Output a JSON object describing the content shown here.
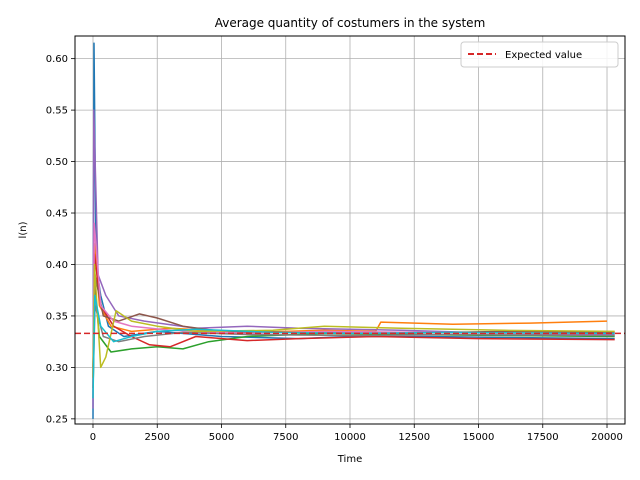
{
  "chart_data": {
    "type": "line",
    "title": "Average quantity of costumers in the system",
    "xlabel": "Time",
    "ylabel": "l(n)",
    "xlim": [
      -700,
      20700
    ],
    "ylim": [
      0.245,
      0.622
    ],
    "x_ticks": [
      0,
      2500,
      5000,
      7500,
      10000,
      12500,
      15000,
      17500,
      20000
    ],
    "y_ticks": [
      0.25,
      0.3,
      0.35,
      0.4,
      0.45,
      0.5,
      0.55,
      0.6
    ],
    "grid": true,
    "legend_position": "top-right",
    "reference_line": {
      "name": "Expected value",
      "y": 0.333,
      "style": "dashed",
      "color": "#d62728"
    },
    "series": [
      {
        "color": "#1f77b4",
        "points": [
          [
            0,
            0.25
          ],
          [
            40,
            0.615
          ],
          [
            120,
            0.4
          ],
          [
            300,
            0.37
          ],
          [
            600,
            0.34
          ],
          [
            1200,
            0.33
          ],
          [
            2500,
            0.335
          ],
          [
            5000,
            0.33
          ],
          [
            8000,
            0.328
          ],
          [
            10000,
            0.33
          ],
          [
            13000,
            0.33
          ],
          [
            16000,
            0.329
          ],
          [
            20300,
            0.328
          ]
        ]
      },
      {
        "color": "#ff7f0e",
        "points": [
          [
            0,
            0.28
          ],
          [
            60,
            0.42
          ],
          [
            250,
            0.36
          ],
          [
            700,
            0.34
          ],
          [
            1500,
            0.335
          ],
          [
            3000,
            0.338
          ],
          [
            6000,
            0.334
          ],
          [
            9000,
            0.336
          ],
          [
            11000,
            0.335
          ],
          [
            11200,
            0.344
          ],
          [
            14000,
            0.342
          ],
          [
            17000,
            0.343
          ],
          [
            20000,
            0.345
          ]
        ]
      },
      {
        "color": "#2ca02c",
        "points": [
          [
            0,
            0.27
          ],
          [
            60,
            0.38
          ],
          [
            250,
            0.33
          ],
          [
            700,
            0.315
          ],
          [
            1500,
            0.318
          ],
          [
            2500,
            0.32
          ],
          [
            3500,
            0.318
          ],
          [
            4500,
            0.325
          ],
          [
            6000,
            0.33
          ],
          [
            9000,
            0.333
          ],
          [
            12000,
            0.332
          ],
          [
            16000,
            0.331
          ],
          [
            20300,
            0.33
          ]
        ]
      },
      {
        "color": "#d62728",
        "points": [
          [
            0,
            0.29
          ],
          [
            60,
            0.41
          ],
          [
            300,
            0.36
          ],
          [
            800,
            0.34
          ],
          [
            1500,
            0.33
          ],
          [
            2200,
            0.322
          ],
          [
            3000,
            0.32
          ],
          [
            4000,
            0.33
          ],
          [
            6000,
            0.326
          ],
          [
            8000,
            0.328
          ],
          [
            11000,
            0.33
          ],
          [
            15000,
            0.328
          ],
          [
            20300,
            0.327
          ]
        ]
      },
      {
        "color": "#9467bd",
        "points": [
          [
            0,
            0.26
          ],
          [
            30,
            0.55
          ],
          [
            200,
            0.39
          ],
          [
            500,
            0.37
          ],
          [
            1000,
            0.35
          ],
          [
            2000,
            0.345
          ],
          [
            4000,
            0.338
          ],
          [
            6000,
            0.34
          ],
          [
            8000,
            0.338
          ],
          [
            12000,
            0.336
          ],
          [
            16000,
            0.333
          ],
          [
            20300,
            0.332
          ]
        ]
      },
      {
        "color": "#8c564b",
        "points": [
          [
            0,
            0.3
          ],
          [
            80,
            0.39
          ],
          [
            400,
            0.35
          ],
          [
            1000,
            0.345
          ],
          [
            1800,
            0.352
          ],
          [
            2500,
            0.348
          ],
          [
            3500,
            0.34
          ],
          [
            5000,
            0.335
          ],
          [
            8000,
            0.334
          ],
          [
            12000,
            0.333
          ],
          [
            16000,
            0.335
          ],
          [
            20300,
            0.334
          ]
        ]
      },
      {
        "color": "#e377c2",
        "points": [
          [
            0,
            0.27
          ],
          [
            50,
            0.44
          ],
          [
            300,
            0.36
          ],
          [
            800,
            0.345
          ],
          [
            1500,
            0.34
          ],
          [
            3000,
            0.336
          ],
          [
            6000,
            0.333
          ],
          [
            9000,
            0.335
          ],
          [
            13000,
            0.334
          ],
          [
            17000,
            0.333
          ],
          [
            20300,
            0.333
          ]
        ]
      },
      {
        "color": "#7f7f7f",
        "points": [
          [
            0,
            0.28
          ],
          [
            80,
            0.36
          ],
          [
            400,
            0.33
          ],
          [
            1000,
            0.325
          ],
          [
            2000,
            0.33
          ],
          [
            3500,
            0.334
          ],
          [
            6000,
            0.332
          ],
          [
            10000,
            0.331
          ],
          [
            14000,
            0.332
          ],
          [
            20300,
            0.331
          ]
        ]
      },
      {
        "color": "#bcbd22",
        "points": [
          [
            0,
            0.29
          ],
          [
            60,
            0.4
          ],
          [
            300,
            0.3
          ],
          [
            500,
            0.31
          ],
          [
            900,
            0.355
          ],
          [
            1500,
            0.345
          ],
          [
            2500,
            0.34
          ],
          [
            4000,
            0.335
          ],
          [
            7000,
            0.336
          ],
          [
            9000,
            0.34
          ],
          [
            12000,
            0.338
          ],
          [
            16000,
            0.336
          ],
          [
            20300,
            0.335
          ]
        ]
      },
      {
        "color": "#17becf",
        "points": [
          [
            0,
            0.27
          ],
          [
            70,
            0.37
          ],
          [
            300,
            0.34
          ],
          [
            800,
            0.325
          ],
          [
            1500,
            0.33
          ],
          [
            2500,
            0.335
          ],
          [
            4000,
            0.337
          ],
          [
            7000,
            0.334
          ],
          [
            10000,
            0.333
          ],
          [
            14000,
            0.334
          ],
          [
            20300,
            0.333
          ]
        ]
      }
    ]
  }
}
